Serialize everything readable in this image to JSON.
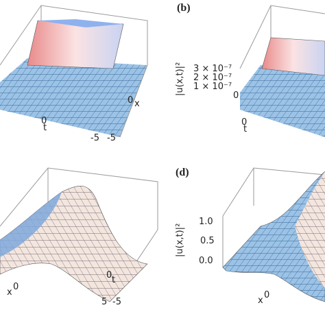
{
  "top_left": {
    "x_axis": "0",
    "x_sub": "x",
    "t_axis": "0",
    "t_sub": "t",
    "ticks": [
      "-5",
      "-5"
    ]
  },
  "top_right": {
    "label": "(b)",
    "z_axis_label": "|u(x,t)|²",
    "z_ticks": [
      "3 × 10⁻⁷",
      "2 × 10⁻⁷",
      "1 × 10⁻⁷"
    ],
    "corner": "0",
    "t_axis": "0",
    "t_sub": "t"
  },
  "bottom_left": {
    "x_axis": "x",
    "x_sup": "0",
    "t_axis": "0",
    "t_sub": "t",
    "ticks": [
      "5",
      "-5"
    ]
  },
  "bottom_right": {
    "label": "(d)",
    "z_axis_label": "|u(x,t)|²",
    "z_ticks": [
      "1.0",
      "0.5",
      "0.0"
    ],
    "x_axis": "x",
    "x_sup": "0"
  }
}
